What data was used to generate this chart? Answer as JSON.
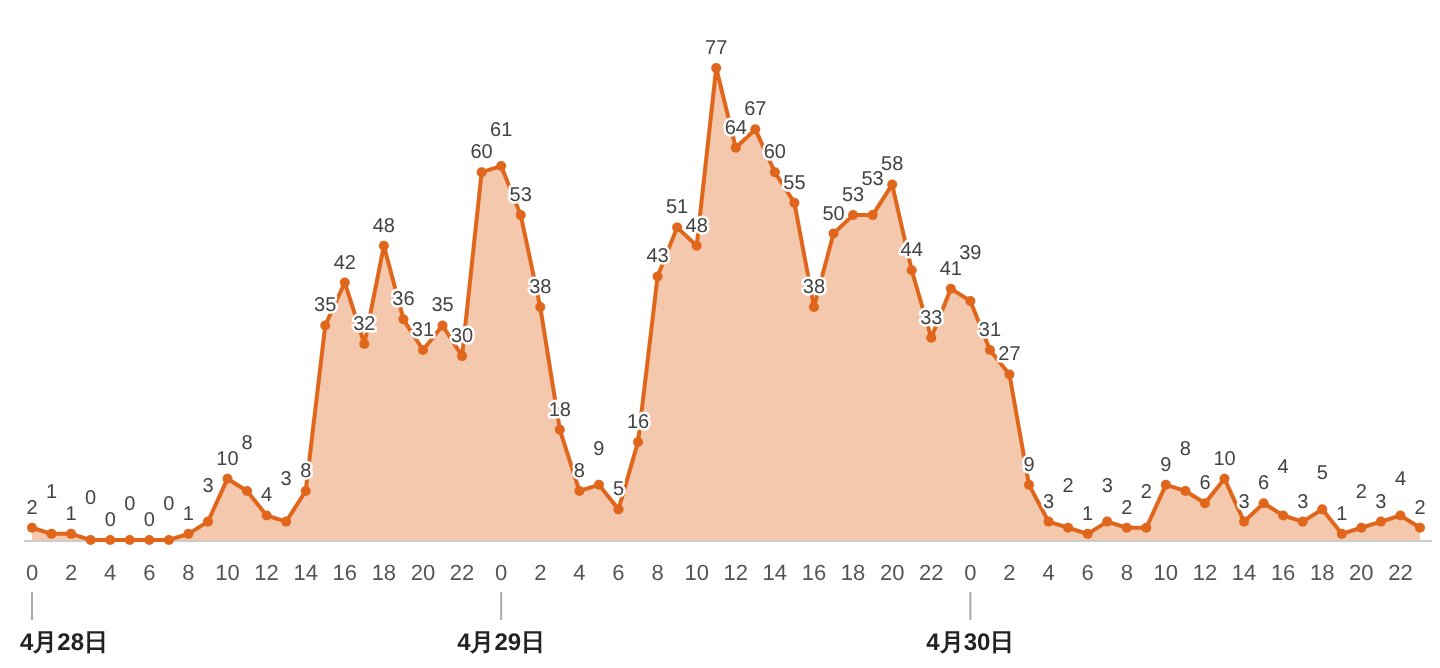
{
  "chart_data": {
    "type": "area",
    "color": "#e0661c",
    "marker": "circle",
    "data_labels": true,
    "categories": [
      "0",
      null,
      "2",
      null,
      "4",
      null,
      "6",
      null,
      "8",
      null,
      "10",
      null,
      "12",
      null,
      "14",
      null,
      "16",
      null,
      "18",
      null,
      "20",
      null,
      "22",
      null,
      "0",
      null,
      "2",
      null,
      "4",
      null,
      "6",
      null,
      "8",
      null,
      "10",
      null,
      "12",
      null,
      "14",
      null,
      "16",
      null,
      "18",
      null,
      "20",
      null,
      "22",
      null,
      "0",
      null,
      "2",
      null,
      "4",
      null,
      "6",
      null,
      "8",
      null,
      "10",
      null,
      "12",
      null,
      "14",
      null,
      "16",
      null,
      "18",
      null,
      "20",
      null,
      "22",
      null
    ],
    "values": [
      2,
      1,
      1,
      0,
      0,
      0,
      0,
      0,
      1,
      3,
      10,
      8,
      4,
      3,
      8,
      35,
      42,
      32,
      48,
      36,
      31,
      35,
      30,
      60,
      61,
      53,
      38,
      18,
      8,
      9,
      5,
      16,
      43,
      51,
      48,
      77,
      64,
      67,
      60,
      55,
      38,
      50,
      53,
      53,
      58,
      44,
      33,
      41,
      39,
      31,
      27,
      9,
      3,
      2,
      1,
      3,
      2,
      2,
      9,
      8,
      6,
      10,
      3,
      6,
      4,
      3,
      5,
      1,
      2,
      3,
      4,
      2
    ],
    "annotations": [
      "4月28日",
      "4月29日",
      "4月30日"
    ]
  }
}
